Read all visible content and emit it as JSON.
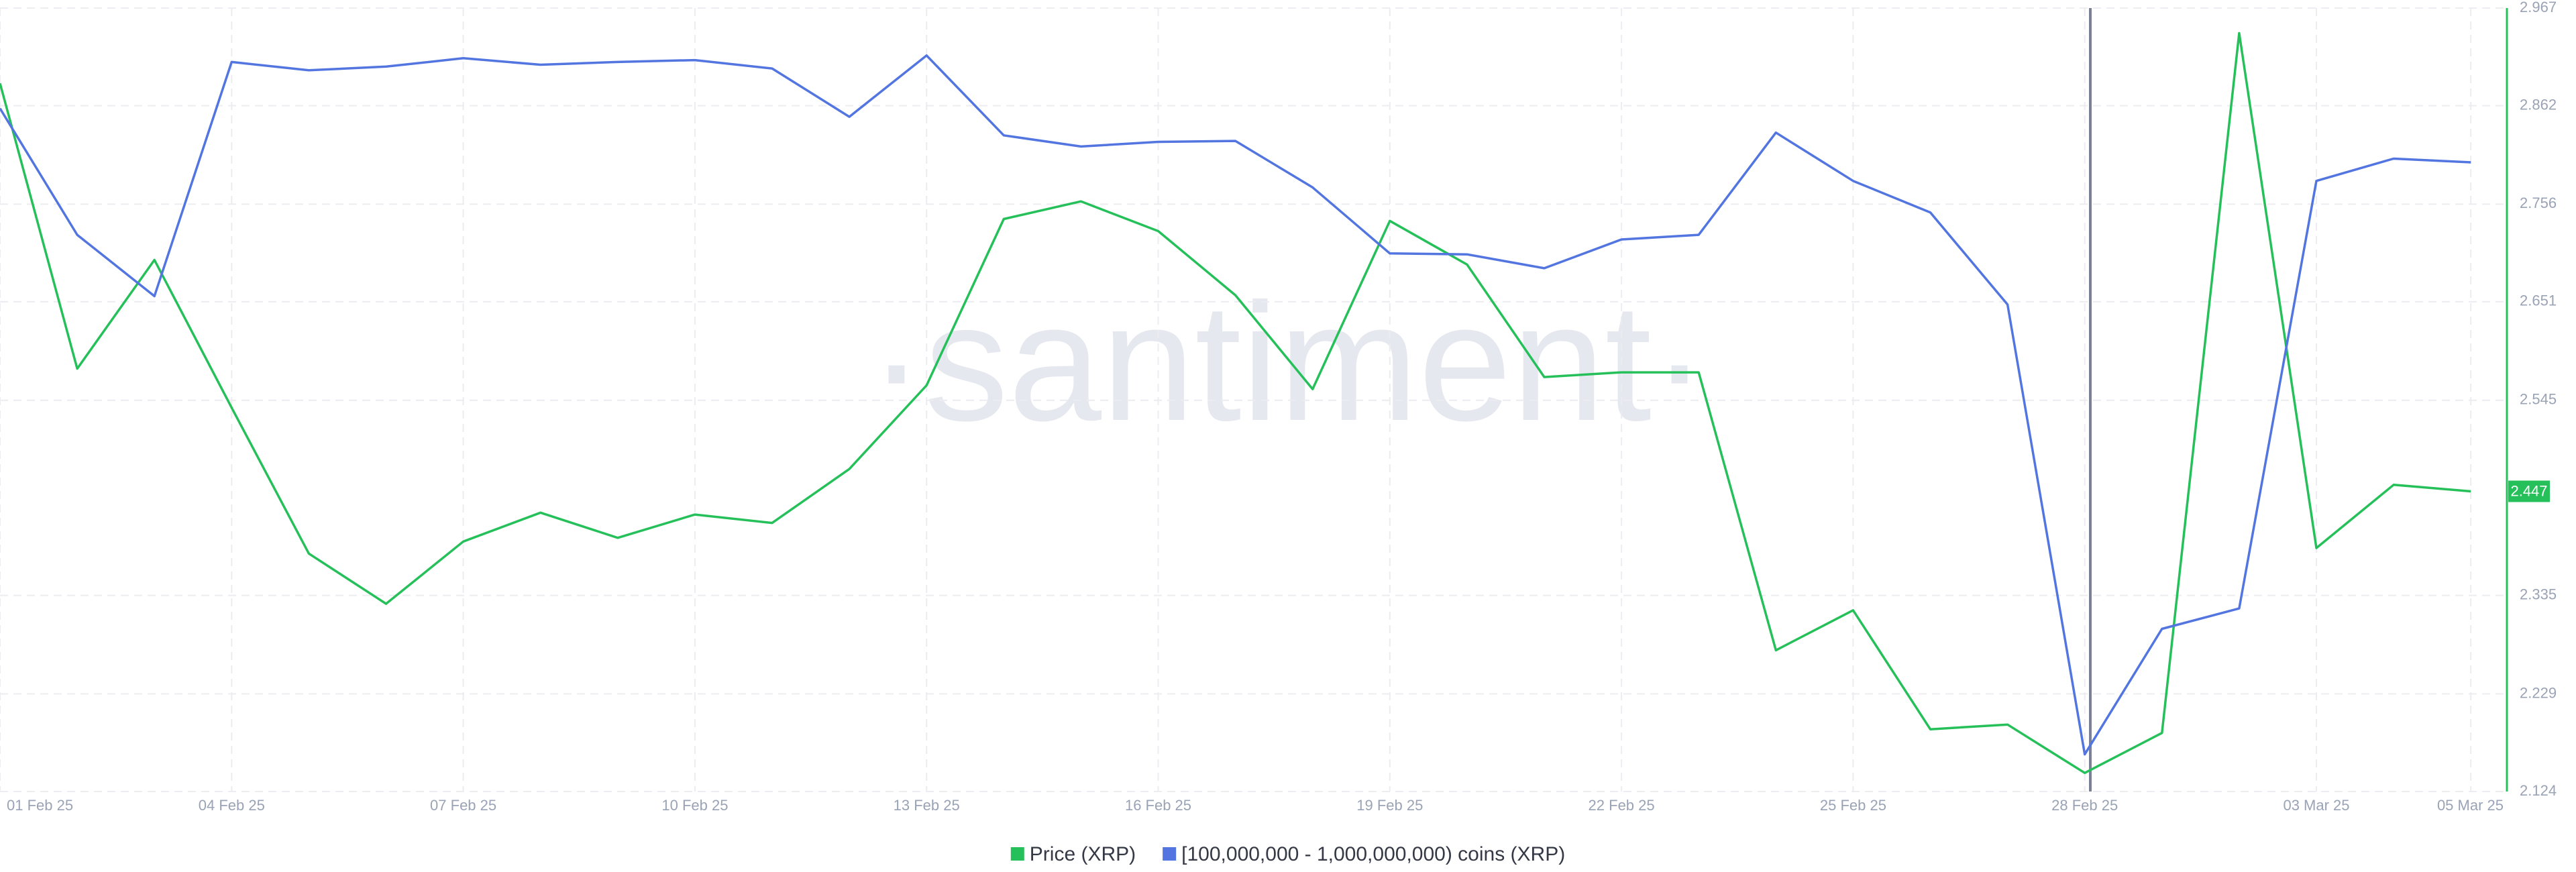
{
  "chart_data": {
    "type": "line",
    "watermark": "·santiment·",
    "categories": [
      "01 Feb 25",
      null,
      null,
      "04 Feb 25",
      null,
      null,
      "07 Feb 25",
      null,
      null,
      "10 Feb 25",
      null,
      null,
      "13 Feb 25",
      null,
      null,
      "16 Feb 25",
      null,
      null,
      "19 Feb 25",
      null,
      null,
      "22 Feb 25",
      null,
      null,
      "25 Feb 25",
      null,
      null,
      "28 Feb 25",
      null,
      null,
      "03 Mar 25",
      null,
      "05 Mar 25"
    ],
    "series": [
      {
        "name": "Price (XRP)",
        "color": "#26c05a",
        "values": [
          2.886,
          2.579,
          2.696,
          2.537,
          2.38,
          2.326,
          2.393,
          2.424,
          2.397,
          2.422,
          2.413,
          2.471,
          2.561,
          2.74,
          2.759,
          2.727,
          2.658,
          2.557,
          2.738,
          2.691,
          2.57,
          2.575,
          2.575,
          2.276,
          2.319,
          2.191,
          2.196,
          2.144,
          2.187,
          2.94,
          2.386,
          2.454,
          2.447
        ]
      },
      {
        "name": "[100,000,000 - 1,000,000,000) coins (XRP)",
        "color": "#5275e0",
        "values": [
          2.859,
          2.723,
          2.657,
          2.909,
          2.9,
          2.904,
          2.913,
          2.906,
          2.909,
          2.911,
          2.902,
          2.85,
          2.916,
          2.83,
          2.818,
          2.823,
          2.824,
          2.774,
          2.703,
          2.702,
          2.687,
          2.718,
          2.723,
          2.833,
          2.781,
          2.747,
          2.648,
          2.164,
          2.299,
          2.321,
          2.781,
          2.805,
          2.801
        ]
      }
    ],
    "ylim": [
      2.124,
      2.967
    ],
    "yticks": [
      2.124,
      2.229,
      2.335,
      2.545,
      2.651,
      2.756,
      2.862,
      2.967
    ],
    "grid": true
  }
}
